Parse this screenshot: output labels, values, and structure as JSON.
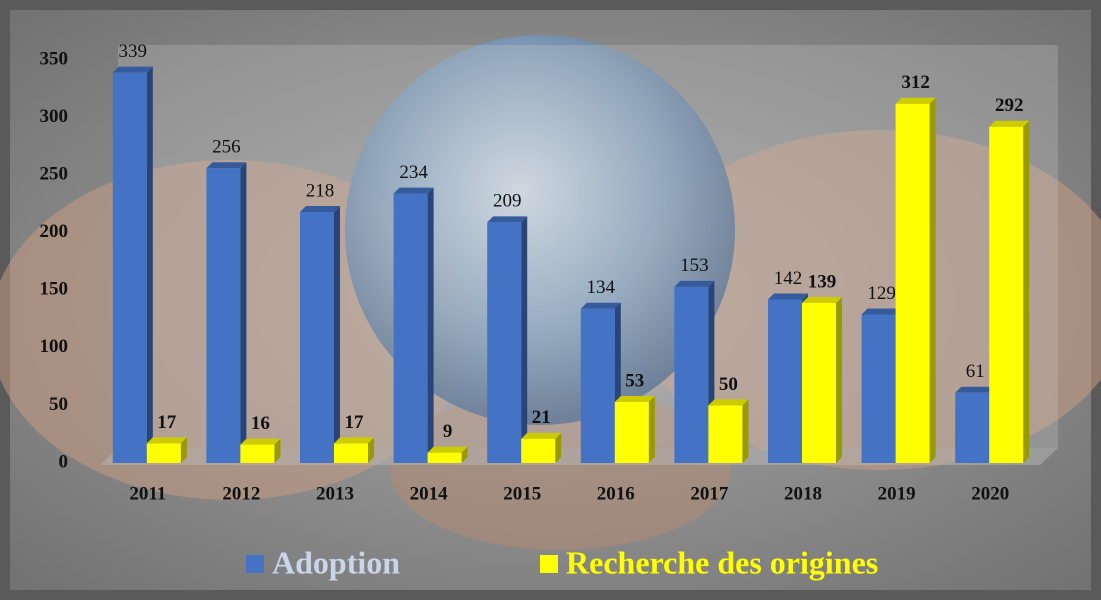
{
  "chart_data": {
    "type": "bar",
    "categories": [
      "2011",
      "2012",
      "2013",
      "2014",
      "2015",
      "2016",
      "2017",
      "2018",
      "2019",
      "2020"
    ],
    "series": [
      {
        "name": "Adoption",
        "color": "#4472c4",
        "values": [
          339,
          256,
          218,
          234,
          209,
          134,
          153,
          142,
          129,
          61
        ]
      },
      {
        "name": "Recherche des origines",
        "color": "#ffff00",
        "values": [
          17,
          16,
          17,
          9,
          21,
          53,
          50,
          139,
          312,
          292
        ]
      }
    ],
    "ylim": [
      0,
      350
    ],
    "yticks": [
      0,
      50,
      100,
      150,
      200,
      250,
      300,
      350
    ],
    "grid": false,
    "legend": "bottom"
  }
}
